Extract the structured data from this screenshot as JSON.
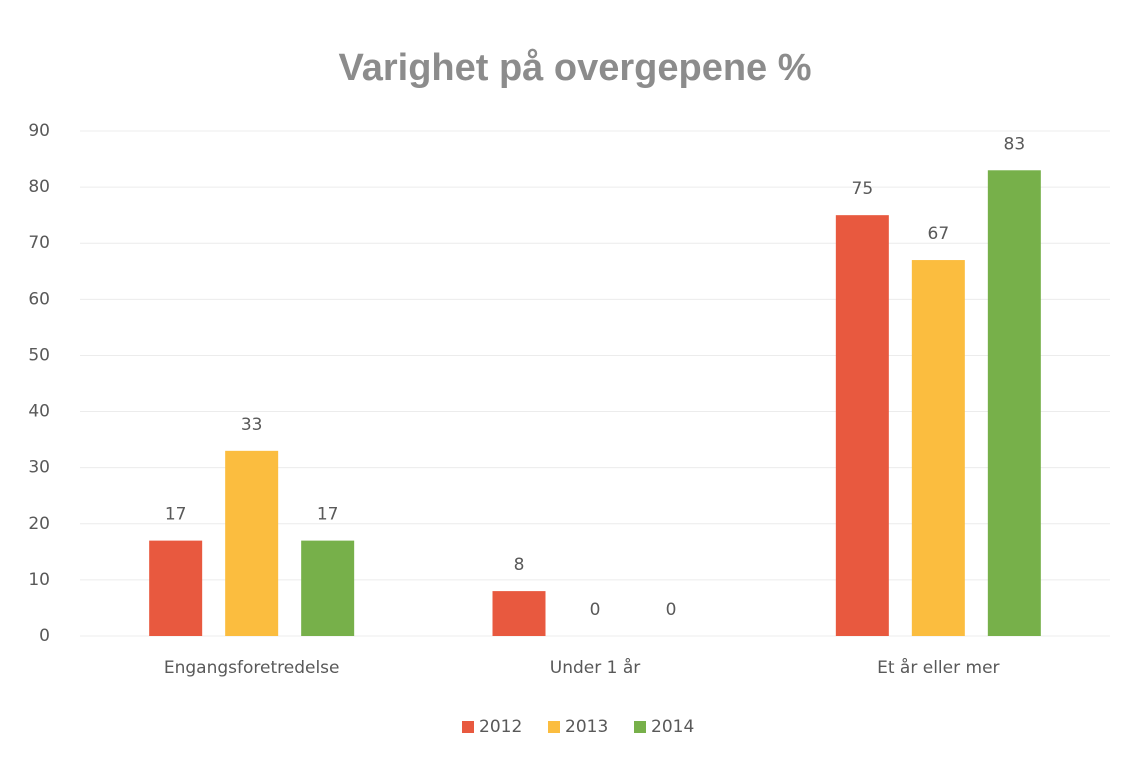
{
  "chart_data": {
    "type": "bar",
    "title": "Varighet på overgepene %",
    "categories": [
      "Engangsforetredelse",
      "Under 1 år",
      "Et år eller mer"
    ],
    "series": [
      {
        "name": "2012",
        "color": "#e8593f",
        "values": [
          17,
          8,
          75
        ]
      },
      {
        "name": "2013",
        "color": "#fbbd3f",
        "values": [
          33,
          0,
          67
        ]
      },
      {
        "name": "2014",
        "color": "#77b04a",
        "values": [
          17,
          0,
          83
        ]
      }
    ],
    "ylim": [
      0,
      90
    ],
    "yticks": [
      0,
      10,
      20,
      30,
      40,
      50,
      60,
      70,
      80,
      90
    ],
    "grid": true,
    "legend": "bottom"
  }
}
